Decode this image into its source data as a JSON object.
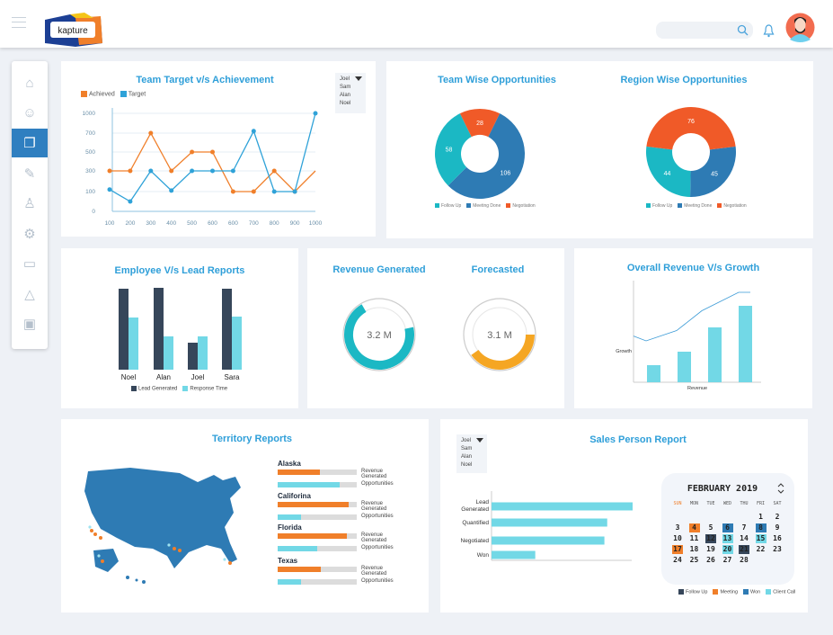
{
  "header": {
    "logo_text": "kapture",
    "search_placeholder": "",
    "icons": [
      "menu-icon",
      "search-icon",
      "bell-icon",
      "avatar"
    ]
  },
  "sidebar": {
    "items": [
      {
        "icon": "home-icon"
      },
      {
        "icon": "user-icon"
      },
      {
        "icon": "documents-icon",
        "active": true
      },
      {
        "icon": "edit-icon"
      },
      {
        "icon": "contacts-icon"
      },
      {
        "icon": "gear-icon"
      },
      {
        "icon": "monitor-icon"
      },
      {
        "icon": "drive-icon"
      },
      {
        "icon": "save-icon"
      }
    ]
  },
  "colors": {
    "accent": "#2f9fd9",
    "orange": "#f07f2a",
    "blue": "#2fa2d8",
    "teal": "#1bb8c4",
    "navy": "#2e7bb4",
    "red_orange": "#f05a28",
    "light_teal": "#72d8e6",
    "dark": "#36465a"
  },
  "team_target": {
    "title": "Team Target v/s Achievement",
    "legend": [
      "Achieved",
      "Target"
    ],
    "dropdown": [
      "Joel",
      "Sam",
      "Alan",
      "Noel"
    ]
  },
  "team_wise": {
    "title": "Team Wise Opportunities"
  },
  "region_wise": {
    "title": "Region Wise Opportunities"
  },
  "donut_legend": [
    "Follow Up",
    "Meeting Done",
    "Negotiation"
  ],
  "employee": {
    "title": "Employee V/s Lead Reports",
    "legend": [
      "Lead Generated",
      "Response Time"
    ]
  },
  "revenue": {
    "title": "Revenue Generated",
    "value": "3.2 M",
    "fraction": 0.7
  },
  "forecast": {
    "title": "Forecasted",
    "value": "3.1 M",
    "fraction": 0.4
  },
  "growth": {
    "title": "Overall Revenue V/s Growth",
    "ylabel": "Growth",
    "xlabel": "Revenue"
  },
  "territory": {
    "title": "Territory Reports",
    "bar_labels": [
      "Revenue Generated",
      "Opportunities"
    ],
    "states": [
      {
        "name": "Alaska",
        "revenue": 53,
        "opportunities": 78
      },
      {
        "name": "Califorina",
        "revenue": 90,
        "opportunities": 29
      },
      {
        "name": "Florida",
        "revenue": 87,
        "opportunities": 50
      },
      {
        "name": "Texas",
        "revenue": 54,
        "opportunities": 29
      }
    ]
  },
  "sales_person": {
    "title": "Sales Person Report",
    "dropdown": [
      "Joel",
      "Sam",
      "Alan",
      "Noel"
    ]
  },
  "calendar": {
    "month": "FEBRUARY 2019",
    "days_of_week": [
      "SUN",
      "MON",
      "TUE",
      "WED",
      "THU",
      "FRI",
      "SAT"
    ],
    "highlights": {
      "4": "meeting",
      "6": "won",
      "8": "won",
      "12": "follow_up",
      "13": "client_call",
      "15": "client_call",
      "17": "meeting",
      "20": "client_call",
      "21": "follow_up"
    },
    "legend": [
      "Follow Up",
      "Meeting",
      "Won",
      "Client Call"
    ]
  },
  "chart_data": [
    {
      "type": "line",
      "title": "Team Target v/s Achievement",
      "categories": [
        "100",
        "200",
        "300",
        "400",
        "500",
        "600",
        "600",
        "700",
        "800",
        "900",
        "1000"
      ],
      "yticks": [
        0,
        100,
        300,
        500,
        700,
        1000
      ],
      "series": [
        {
          "name": "Achieved",
          "values": [
            300,
            300,
            700,
            300,
            500,
            500,
            100,
            100,
            300,
            100,
            300
          ]
        },
        {
          "name": "Target",
          "values": [
            120,
            50,
            300,
            110,
            300,
            300,
            300,
            730,
            100,
            100,
            1000
          ]
        }
      ],
      "legend": "top-left",
      "grid": true
    },
    {
      "type": "pie",
      "title": "Team Wise Opportunities",
      "categories": [
        "Follow Up",
        "Meeting Done",
        "Negotiation"
      ],
      "values": [
        58,
        106,
        28
      ]
    },
    {
      "type": "pie",
      "title": "Region Wise Opportunities",
      "categories": [
        "Follow Up",
        "Meeting Done",
        "Negotiation"
      ],
      "values": [
        44,
        45,
        76
      ]
    },
    {
      "type": "bar",
      "title": "Employee V/s Lead Reports",
      "categories": [
        "Noel",
        "Alan",
        "Joel",
        "Sara"
      ],
      "series": [
        {
          "name": "Lead Generated",
          "values": [
            90,
            91,
            30,
            90
          ]
        },
        {
          "name": "Response Time",
          "values": [
            58,
            37,
            37,
            59
          ]
        }
      ],
      "legend": "bottom"
    },
    {
      "type": "bar",
      "title": "Overall Revenue V/s Growth",
      "xlabel": "Revenue",
      "ylabel": "Growth",
      "values": [
        19,
        34,
        61,
        85
      ],
      "line": [
        36,
        29,
        44,
        73,
        100,
        100
      ]
    },
    {
      "type": "bar",
      "title": "Sales Person Report",
      "orientation": "horizontal",
      "categories": [
        "Lead Generated",
        "Quantified",
        "Negotiated",
        "Won"
      ],
      "values": [
        100,
        82,
        80,
        31
      ]
    }
  ]
}
